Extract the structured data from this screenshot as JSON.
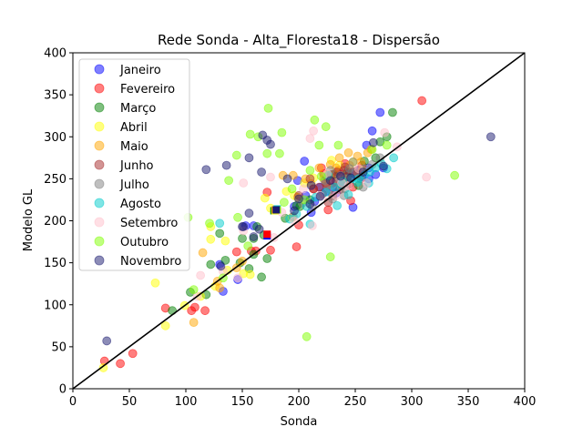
{
  "chart_data": {
    "type": "scatter",
    "title": "Rede Sonda - Alta_Floresta18 - Dispersão",
    "xlabel": "Sonda",
    "ylabel": "Modelo GL",
    "xlim": [
      0,
      400
    ],
    "ylim": [
      0,
      400
    ],
    "xticks": [
      0,
      50,
      100,
      150,
      200,
      250,
      300,
      350,
      400
    ],
    "yticks": [
      0,
      50,
      100,
      150,
      200,
      250,
      300,
      350,
      400
    ],
    "legend_position": "top-left",
    "grid": false,
    "reference_line": {
      "from": [
        0,
        0
      ],
      "to": [
        400,
        400
      ],
      "color": "#000000"
    },
    "series": [
      {
        "name": "Janeiro",
        "color": "#0000ff",
        "points": [
          [
            272,
            329
          ],
          [
            265,
            307
          ],
          [
            153,
            194
          ],
          [
            160,
            194
          ],
          [
            214,
            223
          ],
          [
            238,
            243
          ],
          [
            245,
            258
          ],
          [
            250,
            255
          ],
          [
            255,
            262
          ],
          [
            262,
            250
          ],
          [
            268,
            255
          ],
          [
            275,
            263
          ],
          [
            219,
            240
          ],
          [
            224,
            235
          ],
          [
            230,
            240
          ],
          [
            241,
            252
          ],
          [
            256,
            252
          ],
          [
            262,
            263
          ],
          [
            248,
            216
          ],
          [
            233,
            233
          ],
          [
            206,
            230
          ],
          [
            199,
            248
          ],
          [
            211,
            210
          ],
          [
            205,
            271
          ],
          [
            196,
            217
          ],
          [
            225,
            242
          ],
          [
            146,
            130
          ],
          [
            130,
            148
          ],
          [
            133,
            116
          ],
          [
            260,
            290
          ]
        ],
        "mean": [
          172,
          182
        ]
      },
      {
        "name": "Fevereiro",
        "color": "#ff0000",
        "points": [
          [
            309,
            343
          ],
          [
            28,
            33
          ],
          [
            42,
            30
          ],
          [
            53,
            42
          ],
          [
            82,
            96
          ],
          [
            105,
            93
          ],
          [
            108,
            97
          ],
          [
            117,
            93
          ],
          [
            158,
            164
          ],
          [
            162,
            164
          ],
          [
            172,
            234
          ],
          [
            198,
            169
          ],
          [
            220,
            263
          ],
          [
            226,
            213
          ],
          [
            237,
            255
          ],
          [
            241,
            268
          ],
          [
            246,
            224
          ],
          [
            252,
            256
          ],
          [
            256,
            266
          ],
          [
            230,
            245
          ],
          [
            213,
            238
          ],
          [
            222,
            256
          ],
          [
            175,
            165
          ],
          [
            145,
            163
          ],
          [
            200,
            195
          ],
          [
            235,
            260
          ],
          [
            248,
            240
          ]
        ],
        "mean": [
          172,
          184
        ]
      },
      {
        "name": "Março",
        "color": "#008000",
        "points": [
          [
            283,
            329
          ],
          [
            278,
            300
          ],
          [
            272,
            294
          ],
          [
            160,
            179
          ],
          [
            163,
            193
          ],
          [
            169,
            183
          ],
          [
            172,
            155
          ],
          [
            167,
            133
          ],
          [
            156,
            143
          ],
          [
            150,
            179
          ],
          [
            130,
            185
          ],
          [
            122,
            148
          ],
          [
            118,
            112
          ],
          [
            104,
            115
          ],
          [
            88,
            93
          ],
          [
            201,
            217
          ],
          [
            210,
            225
          ],
          [
            188,
            203
          ],
          [
            198,
            218
          ],
          [
            225,
            252
          ],
          [
            243,
            258
          ],
          [
            253,
            242
          ],
          [
            258,
            271
          ],
          [
            268,
            275
          ],
          [
            135,
            153
          ],
          [
            148,
            150
          ],
          [
            160,
            160
          ],
          [
            231,
            255
          ]
        ],
        "mean": [
          178,
          212
        ]
      },
      {
        "name": "Abril",
        "color": "#ffff00",
        "points": [
          [
            27,
            25
          ],
          [
            73,
            126
          ],
          [
            82,
            75
          ],
          [
            99,
            99
          ],
          [
            113,
            110
          ],
          [
            126,
            122
          ],
          [
            137,
            141
          ],
          [
            151,
            137
          ],
          [
            157,
            136
          ],
          [
            122,
            193
          ],
          [
            170,
            227
          ],
          [
            189,
            235
          ],
          [
            194,
            204
          ],
          [
            205,
            245
          ],
          [
            226,
            255
          ],
          [
            236,
            266
          ],
          [
            248,
            270
          ],
          [
            256,
            260
          ],
          [
            122,
            178
          ],
          [
            135,
            176
          ],
          [
            175,
            215
          ],
          [
            196,
            230
          ],
          [
            213,
            251
          ],
          [
            229,
            272
          ],
          [
            241,
            250
          ]
        ],
        "mean": [
          179,
          212
        ]
      },
      {
        "name": "Maio",
        "color": "#ffa500",
        "points": [
          [
            107,
            79
          ],
          [
            115,
            162
          ],
          [
            128,
            128
          ],
          [
            130,
            120
          ],
          [
            145,
            144
          ],
          [
            150,
            152
          ],
          [
            195,
            254
          ],
          [
            206,
            250
          ],
          [
            218,
            263
          ],
          [
            228,
            267
          ],
          [
            236,
            275
          ],
          [
            244,
            281
          ],
          [
            252,
            277
          ],
          [
            261,
            281
          ],
          [
            233,
            263
          ],
          [
            222,
            250
          ],
          [
            240,
            245
          ],
          [
            211,
            244
          ],
          [
            199,
            228
          ],
          [
            228,
            254
          ],
          [
            245,
            266
          ],
          [
            186,
            254
          ],
          [
            225,
            242
          ],
          [
            255,
            270
          ],
          [
            264,
            285
          ]
        ],
        "mean": [
          179,
          213
        ]
      },
      {
        "name": "Junho",
        "color": "#a52a2a",
        "points": [
          [
            213,
            238
          ],
          [
            218,
            240
          ],
          [
            224,
            245
          ],
          [
            229,
            255
          ],
          [
            233,
            247
          ],
          [
            238,
            242
          ],
          [
            243,
            253
          ],
          [
            248,
            258
          ],
          [
            252,
            260
          ],
          [
            221,
            232
          ],
          [
            236,
            237
          ],
          [
            245,
            244
          ],
          [
            230,
            230
          ],
          [
            226,
            222
          ],
          [
            240,
            260
          ],
          [
            210,
            250
          ],
          [
            255,
            250
          ],
          [
            200,
            230
          ],
          [
            234,
            258
          ],
          [
            241,
            264
          ]
        ],
        "mean": [
          181,
          214
        ]
      },
      {
        "name": "Julho",
        "color": "#808080",
        "points": [
          [
            195,
            205
          ],
          [
            203,
            221
          ],
          [
            212,
            216
          ],
          [
            219,
            230
          ],
          [
            228,
            237
          ],
          [
            235,
            245
          ],
          [
            243,
            250
          ],
          [
            250,
            257
          ],
          [
            258,
            262
          ],
          [
            265,
            267
          ],
          [
            272,
            275
          ],
          [
            248,
            270
          ],
          [
            223,
            248
          ],
          [
            237,
            254
          ],
          [
            240,
            230
          ],
          [
            228,
            260
          ],
          [
            257,
            240
          ],
          [
            230,
            226
          ],
          [
            241,
            238
          ],
          [
            245,
            262
          ]
        ],
        "mean": [
          181,
          214
        ]
      },
      {
        "name": "Agosto",
        "color": "#00cccc",
        "points": [
          [
            130,
            197
          ],
          [
            192,
            202
          ],
          [
            198,
            208
          ],
          [
            207,
            217
          ],
          [
            215,
            228
          ],
          [
            224,
            234
          ],
          [
            232,
            240
          ],
          [
            239,
            247
          ],
          [
            247,
            250
          ],
          [
            252,
            246
          ],
          [
            258,
            254
          ],
          [
            263,
            258
          ],
          [
            268,
            263
          ],
          [
            273,
            268
          ],
          [
            278,
            262
          ],
          [
            284,
            275
          ],
          [
            262,
            245
          ],
          [
            234,
            218
          ],
          [
            244,
            231
          ],
          [
            226,
            254
          ],
          [
            210,
            196
          ],
          [
            253,
            250
          ],
          [
            238,
            243
          ]
        ],
        "mean": [
          181,
          214
        ]
      },
      {
        "name": "Setembro",
        "color": "#ffc0cb",
        "points": [
          [
            313,
            252
          ],
          [
            276,
            305
          ],
          [
            213,
            307
          ],
          [
            210,
            298
          ],
          [
            113,
            135
          ],
          [
            133,
            140
          ],
          [
            146,
            132
          ],
          [
            151,
            188
          ],
          [
            175,
            252
          ],
          [
            185,
            210
          ],
          [
            204,
            238
          ],
          [
            212,
            194
          ],
          [
            219,
            230
          ],
          [
            225,
            256
          ],
          [
            233,
            230
          ],
          [
            238,
            245
          ],
          [
            244,
            242
          ],
          [
            253,
            262
          ],
          [
            260,
            245
          ],
          [
            287,
            288
          ],
          [
            151,
            245
          ],
          [
            110,
            110
          ],
          [
            178,
            180
          ],
          [
            196,
            200
          ]
        ],
        "mean": [
          181,
          213
        ]
      },
      {
        "name": "Outubro",
        "color": "#7fff00",
        "points": [
          [
            173,
            334
          ],
          [
            183,
            280
          ],
          [
            214,
            320
          ],
          [
            224,
            312
          ],
          [
            218,
            290
          ],
          [
            157,
            303
          ],
          [
            145,
            278
          ],
          [
            138,
            248
          ],
          [
            172,
            280
          ],
          [
            185,
            305
          ],
          [
            210,
            260
          ],
          [
            207,
            62
          ],
          [
            228,
            157
          ],
          [
            338,
            254
          ],
          [
            102,
            204
          ],
          [
            107,
            118
          ],
          [
            121,
            197
          ],
          [
            133,
            132
          ],
          [
            146,
            204
          ],
          [
            187,
            222
          ],
          [
            194,
            238
          ],
          [
            205,
            225
          ],
          [
            220,
            253
          ],
          [
            235,
            290
          ],
          [
            265,
            285
          ],
          [
            278,
            290
          ],
          [
            155,
            170
          ],
          [
            164,
            300
          ]
        ],
        "mean": [
          181,
          213
        ]
      },
      {
        "name": "Novembro",
        "color": "#191970",
        "points": [
          [
            370,
            300
          ],
          [
            30,
            57
          ],
          [
            118,
            261
          ],
          [
            136,
            266
          ],
          [
            156,
            275
          ],
          [
            167,
            258
          ],
          [
            172,
            296
          ],
          [
            175,
            291
          ],
          [
            168,
            302
          ],
          [
            151,
            193
          ],
          [
            156,
            209
          ],
          [
            160,
            181
          ],
          [
            131,
            146
          ],
          [
            150,
            193
          ],
          [
            196,
            212
          ],
          [
            200,
            226
          ],
          [
            211,
            242
          ],
          [
            219,
            229
          ],
          [
            228,
            248
          ],
          [
            237,
            253
          ],
          [
            246,
            251
          ],
          [
            257,
            258
          ],
          [
            266,
            293
          ],
          [
            275,
            265
          ],
          [
            210,
            220
          ],
          [
            190,
            250
          ],
          [
            165,
            190
          ]
        ],
        "mean": [
          180,
          213
        ]
      }
    ]
  }
}
